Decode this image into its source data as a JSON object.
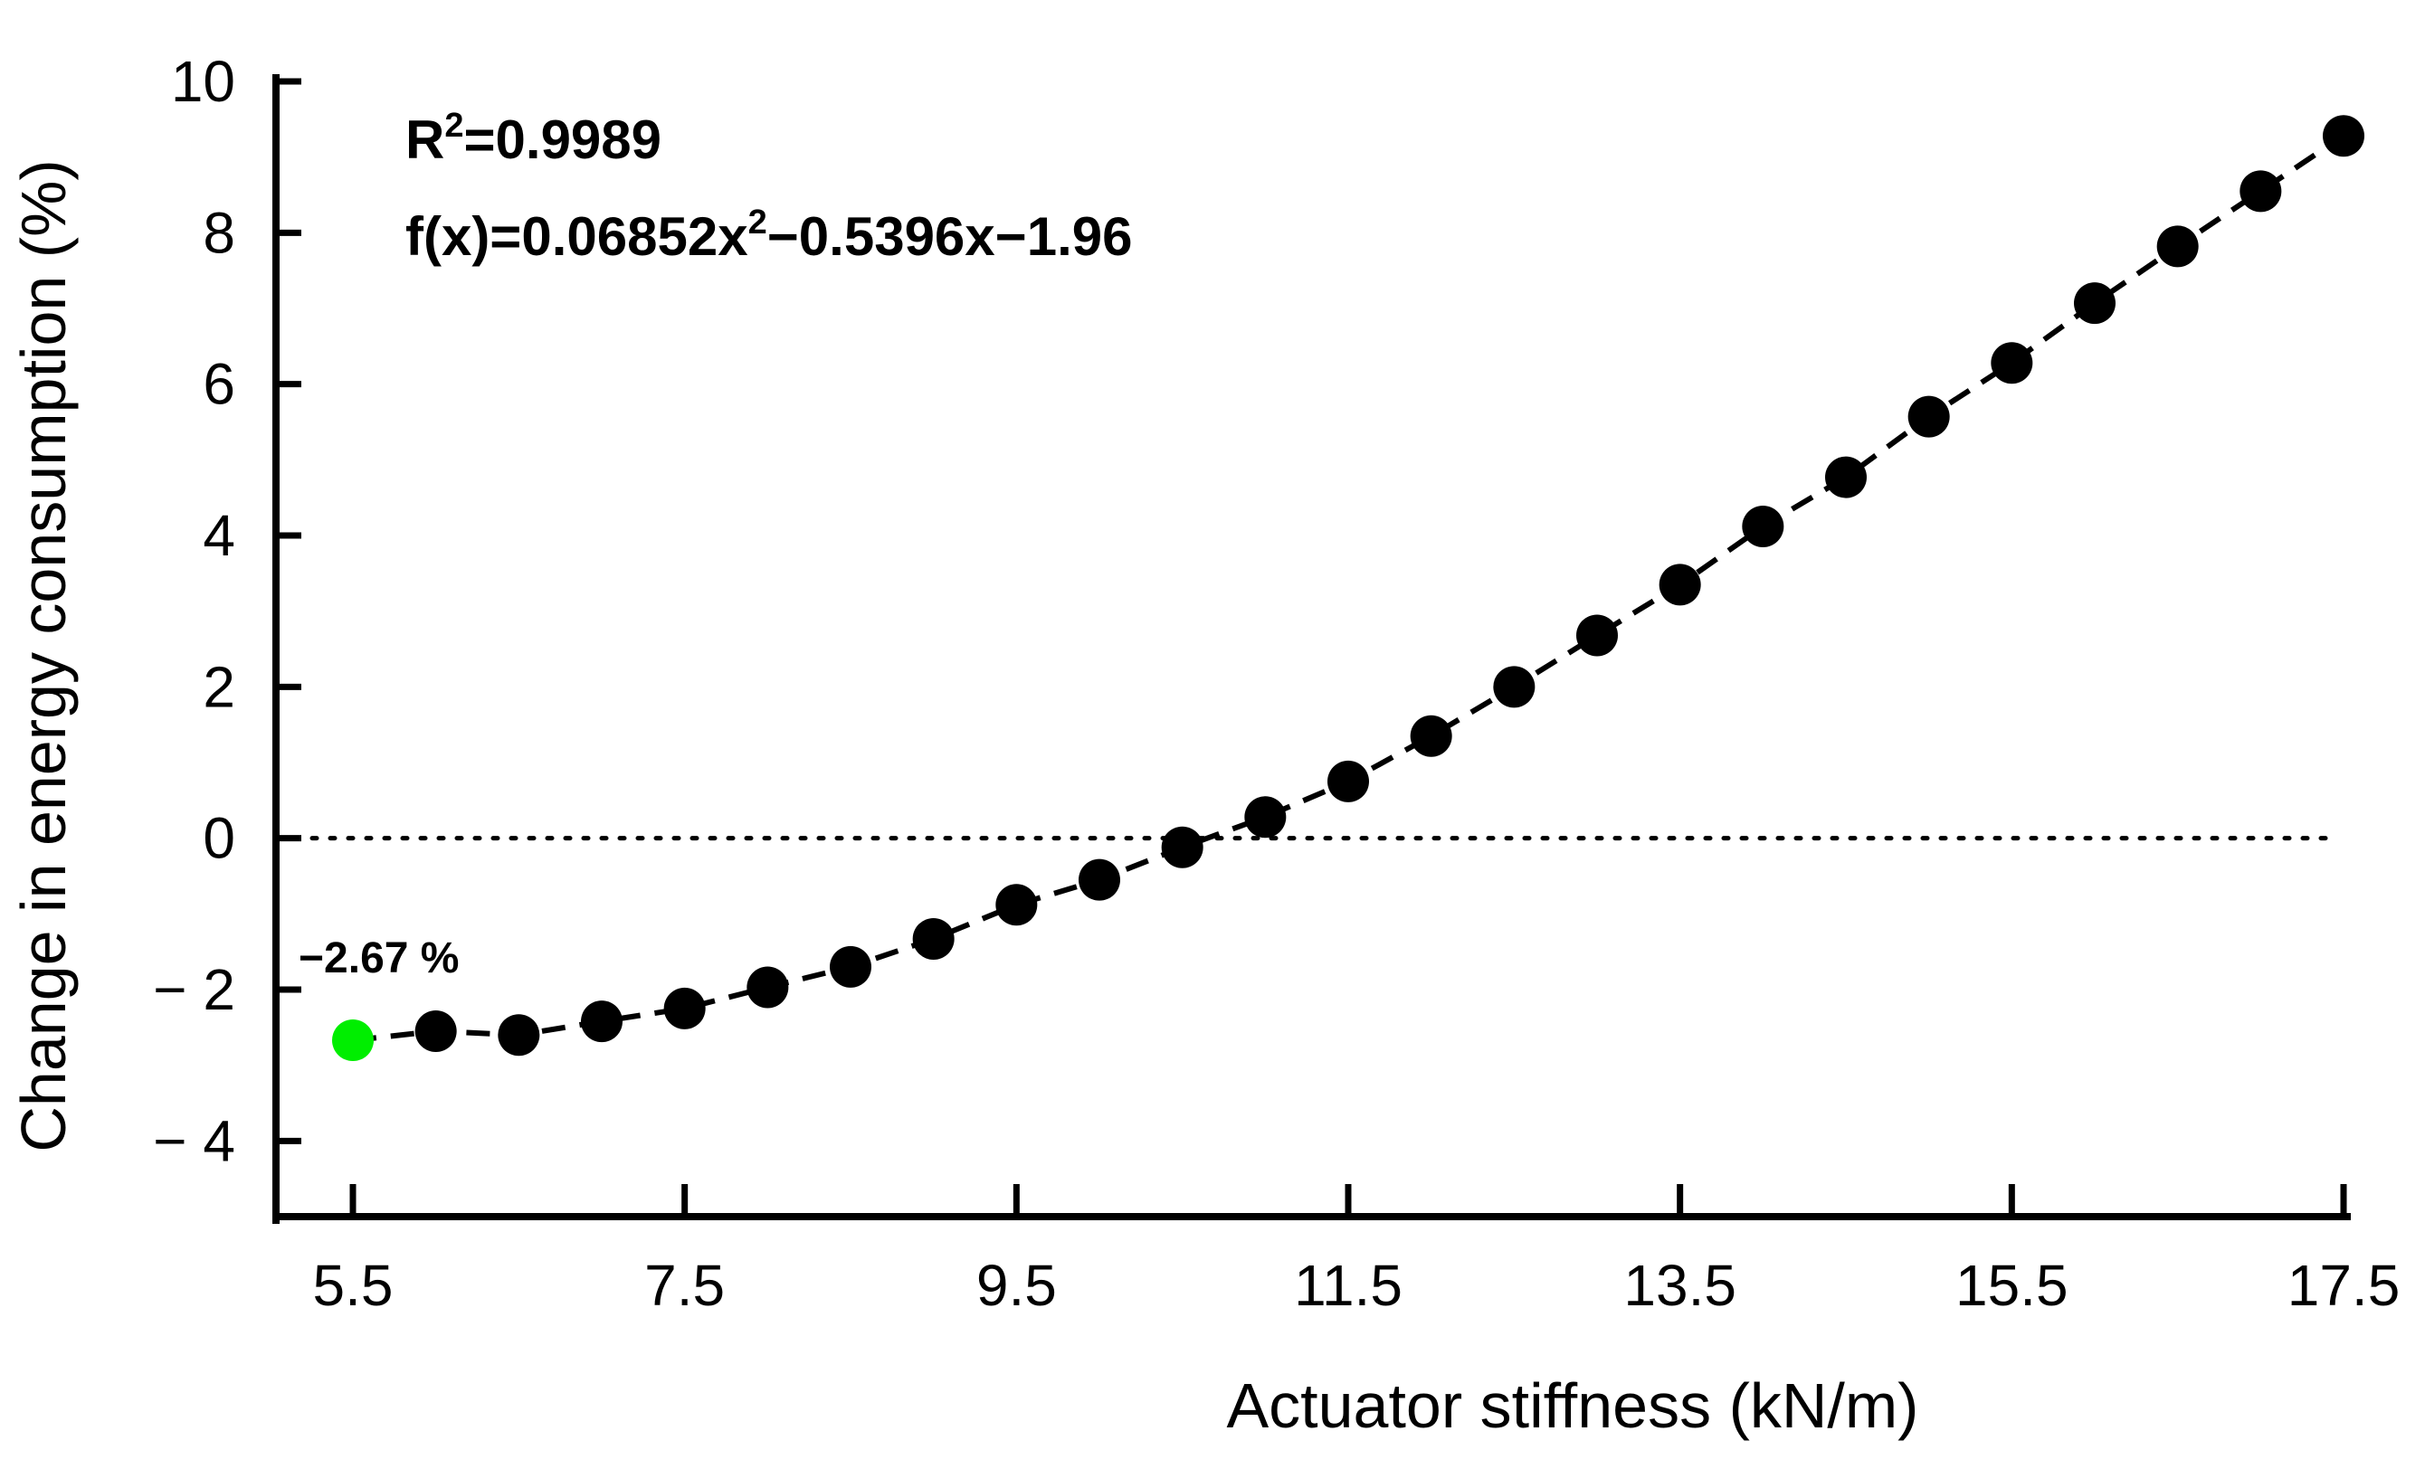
{
  "chart_data": {
    "type": "scatter",
    "xlabel": "Actuator stiffness (kN/m)",
    "ylabel": "Change in energy consumption (%)",
    "xlim": [
      5.5,
      17.5
    ],
    "ylim": [
      -5,
      10
    ],
    "x_ticks": [
      5.5,
      7.5,
      9.5,
      11.5,
      13.5,
      15.5,
      17.5
    ],
    "x_tick_labels": [
      "5.5",
      "7.5",
      "9.5",
      "11.5",
      "13.5",
      "15.5",
      "17.5"
    ],
    "y_ticks": [
      -4,
      -2,
      0,
      2,
      4,
      6,
      8,
      10
    ],
    "y_tick_labels": [
      "− 4",
      "− 2",
      "0",
      "2",
      "4",
      "6",
      "8",
      "10"
    ],
    "grid": false,
    "reference_line": {
      "y": 0,
      "style": "dotted"
    },
    "fit": {
      "equation_prefix": "f(x)=0.06852x",
      "equation_exp": "2",
      "equation_suffix": "−0.5396x−1.96",
      "r2_prefix": "R",
      "r2_exp": "2",
      "r2_suffix": "=0.9989",
      "coefficients": {
        "a": 0.06852,
        "b": -0.5396,
        "c": -1.96
      },
      "line_style": "dashed"
    },
    "series": [
      {
        "marker_color": "#000000",
        "x": [
          6.0,
          6.5,
          7.0,
          7.5,
          8.0,
          8.5,
          9.0,
          9.5,
          10.0,
          10.5,
          11.0,
          11.5,
          12.0,
          12.5,
          13.0,
          13.5,
          14.0,
          14.5,
          15.0,
          15.5,
          16.0,
          16.5,
          17.0,
          17.5
        ],
        "y": [
          -2.55,
          -2.6,
          -2.42,
          -2.25,
          -1.97,
          -1.7,
          -1.33,
          -0.88,
          -0.55,
          -0.12,
          0.28,
          0.75,
          1.35,
          2.0,
          2.68,
          3.35,
          4.12,
          4.77,
          5.57,
          6.28,
          7.07,
          7.82,
          8.55,
          9.28
        ]
      },
      {
        "marker_color": "#00ee00",
        "x": [
          5.5
        ],
        "y": [
          -2.67
        ]
      }
    ],
    "annotations": [
      {
        "text": "−2.67 %",
        "x": 5.5,
        "y": -2.67
      }
    ]
  }
}
